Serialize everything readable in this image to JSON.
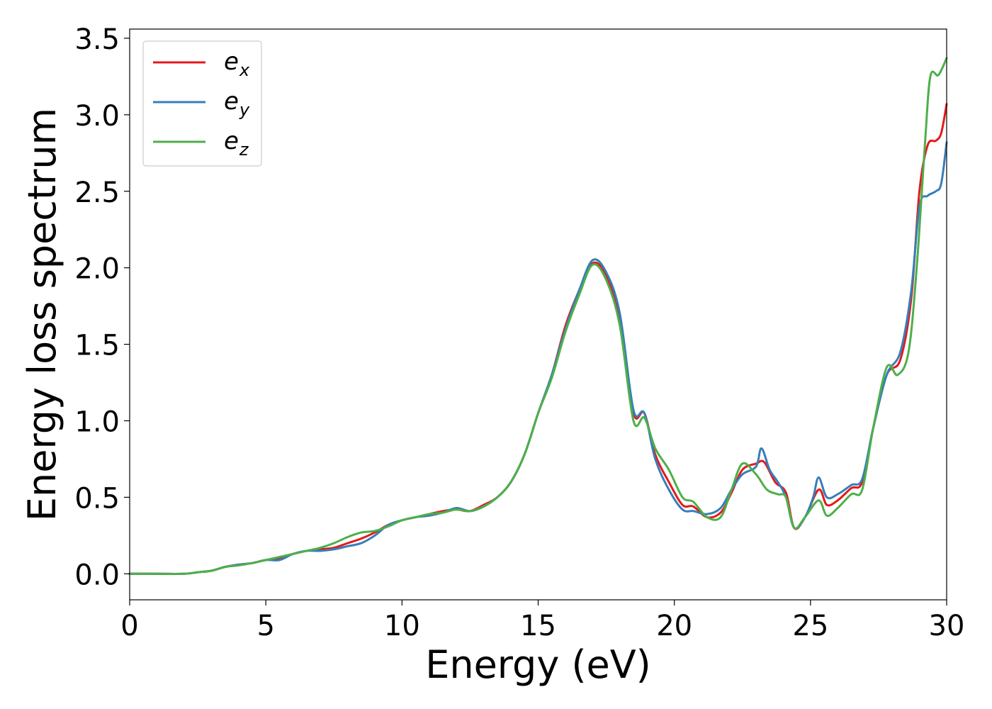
{
  "chart_data": {
    "type": "line",
    "title": "",
    "xlabel": "Energy (eV)",
    "ylabel": "Energy loss spectrum",
    "xlim": [
      0,
      30
    ],
    "ylim": [
      -0.17,
      3.56
    ],
    "xticks": [
      0,
      5,
      10,
      15,
      20,
      25,
      30
    ],
    "xtick_labels": [
      "0",
      "5",
      "10",
      "15",
      "20",
      "25",
      "30"
    ],
    "yticks": [
      0.0,
      0.5,
      1.0,
      1.5,
      2.0,
      2.5,
      3.0,
      3.5
    ],
    "ytick_labels": [
      "0.0",
      "0.5",
      "1.0",
      "1.5",
      "2.0",
      "2.5",
      "3.0",
      "3.5"
    ],
    "grid": false,
    "legend_position": "top-left",
    "series": [
      {
        "name": "e",
        "subscript": "x",
        "color": "#e41a1c",
        "x": [
          0,
          1,
          2,
          2.5,
          3,
          3.5,
          4,
          4.5,
          5,
          5.5,
          6,
          6.5,
          7,
          7.5,
          8,
          8.5,
          9,
          9.5,
          10,
          10.5,
          11,
          11.5,
          12,
          12.5,
          13,
          13.5,
          14,
          14.5,
          15,
          15.5,
          16,
          16.5,
          17,
          17.5,
          18,
          18.5,
          18.9,
          19.3,
          19.8,
          20.3,
          20.7,
          21.2,
          21.7,
          22.1,
          22.5,
          23,
          23.3,
          23.7,
          24.1,
          24.4,
          24.8,
          25.3,
          25.6,
          26,
          26.5,
          26.9,
          27.3,
          27.8,
          28.3,
          28.7,
          29,
          29.3,
          29.6,
          29.8,
          30
        ],
        "y": [
          0.0,
          0.0,
          0.0,
          0.01,
          0.02,
          0.045,
          0.06,
          0.07,
          0.09,
          0.1,
          0.13,
          0.15,
          0.16,
          0.17,
          0.2,
          0.23,
          0.27,
          0.32,
          0.35,
          0.37,
          0.39,
          0.41,
          0.42,
          0.41,
          0.45,
          0.5,
          0.6,
          0.78,
          1.05,
          1.3,
          1.62,
          1.85,
          2.03,
          1.95,
          1.65,
          1.05,
          1.05,
          0.78,
          0.6,
          0.45,
          0.44,
          0.37,
          0.4,
          0.53,
          0.68,
          0.72,
          0.73,
          0.6,
          0.53,
          0.3,
          0.37,
          0.55,
          0.45,
          0.48,
          0.56,
          0.6,
          0.95,
          1.3,
          1.4,
          1.8,
          2.5,
          2.8,
          2.83,
          2.88,
          3.07
        ]
      },
      {
        "name": "e",
        "subscript": "y",
        "color": "#377eb8",
        "x": [
          0,
          1,
          2,
          2.5,
          3,
          3.5,
          4,
          4.5,
          5,
          5.5,
          6,
          6.5,
          7,
          7.5,
          8,
          8.5,
          9,
          9.5,
          10,
          10.5,
          11,
          11.5,
          12,
          12.5,
          13,
          13.5,
          14,
          14.5,
          15,
          15.5,
          16,
          16.5,
          17,
          17.5,
          18,
          18.5,
          18.9,
          19.3,
          19.8,
          20.3,
          20.7,
          21.2,
          21.7,
          22.1,
          22.5,
          23,
          23.2,
          23.5,
          23.8,
          24.1,
          24.4,
          24.8,
          25.1,
          25.3,
          25.6,
          26,
          26.5,
          26.9,
          27.3,
          27.8,
          28.3,
          28.7,
          29,
          29.3,
          29.6,
          29.8,
          30
        ],
        "y": [
          0.0,
          0.0,
          0.0,
          0.01,
          0.02,
          0.045,
          0.06,
          0.07,
          0.09,
          0.09,
          0.13,
          0.15,
          0.15,
          0.16,
          0.18,
          0.2,
          0.25,
          0.32,
          0.35,
          0.37,
          0.38,
          0.4,
          0.43,
          0.41,
          0.44,
          0.5,
          0.6,
          0.78,
          1.05,
          1.3,
          1.6,
          1.85,
          2.05,
          1.97,
          1.7,
          1.07,
          1.05,
          0.75,
          0.55,
          0.42,
          0.41,
          0.39,
          0.43,
          0.55,
          0.65,
          0.7,
          0.82,
          0.68,
          0.6,
          0.5,
          0.3,
          0.37,
          0.5,
          0.63,
          0.5,
          0.52,
          0.58,
          0.62,
          0.95,
          1.3,
          1.45,
          1.85,
          2.4,
          2.47,
          2.5,
          2.55,
          2.82
        ]
      },
      {
        "name": "e",
        "subscript": "z",
        "color": "#4daf4a",
        "x": [
          0,
          1,
          2,
          2.5,
          3,
          3.5,
          4,
          4.5,
          5,
          5.5,
          6,
          6.5,
          7,
          7.5,
          8,
          8.5,
          9,
          9.5,
          10,
          10.5,
          11,
          11.5,
          12,
          12.5,
          13,
          13.5,
          14,
          14.5,
          15,
          15.5,
          16,
          16.5,
          17,
          17.5,
          18,
          18.5,
          18.9,
          19.3,
          19.8,
          20.3,
          20.7,
          21.2,
          21.7,
          22.1,
          22.5,
          23,
          23.4,
          23.8,
          24.1,
          24.4,
          24.8,
          25.3,
          25.6,
          26,
          26.5,
          26.9,
          27.3,
          27.8,
          28.2,
          28.6,
          28.9,
          29.2,
          29.4,
          29.7,
          30
        ],
        "y": [
          0.0,
          0.0,
          0.0,
          0.01,
          0.02,
          0.045,
          0.055,
          0.07,
          0.09,
          0.11,
          0.13,
          0.15,
          0.17,
          0.2,
          0.24,
          0.27,
          0.28,
          0.31,
          0.35,
          0.37,
          0.39,
          0.4,
          0.42,
          0.41,
          0.44,
          0.5,
          0.6,
          0.78,
          1.05,
          1.28,
          1.58,
          1.82,
          2.02,
          1.92,
          1.62,
          1.0,
          1.02,
          0.82,
          0.68,
          0.5,
          0.47,
          0.37,
          0.37,
          0.55,
          0.72,
          0.65,
          0.55,
          0.52,
          0.5,
          0.3,
          0.37,
          0.48,
          0.38,
          0.43,
          0.52,
          0.55,
          0.95,
          1.35,
          1.3,
          1.45,
          2.0,
          2.8,
          3.25,
          3.26,
          3.37
        ]
      }
    ]
  }
}
